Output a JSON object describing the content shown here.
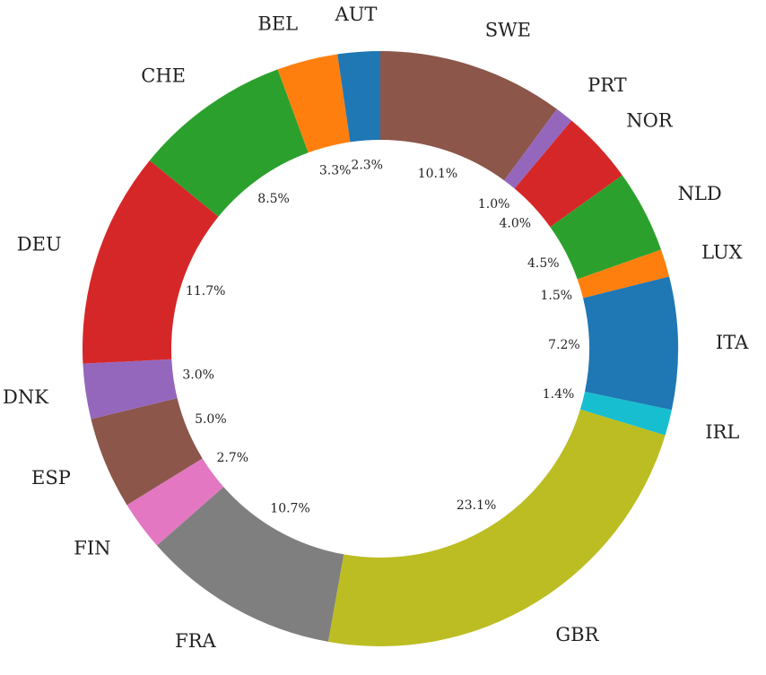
{
  "chart_data": {
    "type": "pie",
    "style": "donut",
    "start_angle_deg": 90,
    "direction": "clockwise",
    "slices": [
      {
        "label": "SWE",
        "value": 10.1,
        "pct_label": "10.1%",
        "color": "#8c564b"
      },
      {
        "label": "PRT",
        "value": 1.0,
        "pct_label": "1.0%",
        "color": "#9467bd"
      },
      {
        "label": "NOR",
        "value": 4.0,
        "pct_label": "4.0%",
        "color": "#d62728"
      },
      {
        "label": "NLD",
        "value": 4.5,
        "pct_label": "4.5%",
        "color": "#2ca02c"
      },
      {
        "label": "LUX",
        "value": 1.5,
        "pct_label": "1.5%",
        "color": "#ff7f0e"
      },
      {
        "label": "ITA",
        "value": 7.2,
        "pct_label": "7.2%",
        "color": "#1f77b4"
      },
      {
        "label": "IRL",
        "value": 1.4,
        "pct_label": "1.4%",
        "color": "#17becf"
      },
      {
        "label": "GBR",
        "value": 23.1,
        "pct_label": "23.1%",
        "color": "#bcbd22"
      },
      {
        "label": "FRA",
        "value": 10.7,
        "pct_label": "10.7%",
        "color": "#7f7f7f"
      },
      {
        "label": "FIN",
        "value": 2.7,
        "pct_label": "2.7%",
        "color": "#e377c2"
      },
      {
        "label": "ESP",
        "value": 5.0,
        "pct_label": "5.0%",
        "color": "#8c564b"
      },
      {
        "label": "DNK",
        "value": 3.0,
        "pct_label": "3.0%",
        "color": "#9467bd"
      },
      {
        "label": "DEU",
        "value": 11.7,
        "pct_label": "11.7%",
        "color": "#d62728"
      },
      {
        "label": "CHE",
        "value": 8.5,
        "pct_label": "8.5%",
        "color": "#2ca02c"
      },
      {
        "label": "BEL",
        "value": 3.3,
        "pct_label": "3.3%",
        "color": "#ff7f0e"
      },
      {
        "label": "AUT",
        "value": 2.3,
        "pct_label": "2.3%",
        "color": "#1f77b4"
      }
    ]
  }
}
